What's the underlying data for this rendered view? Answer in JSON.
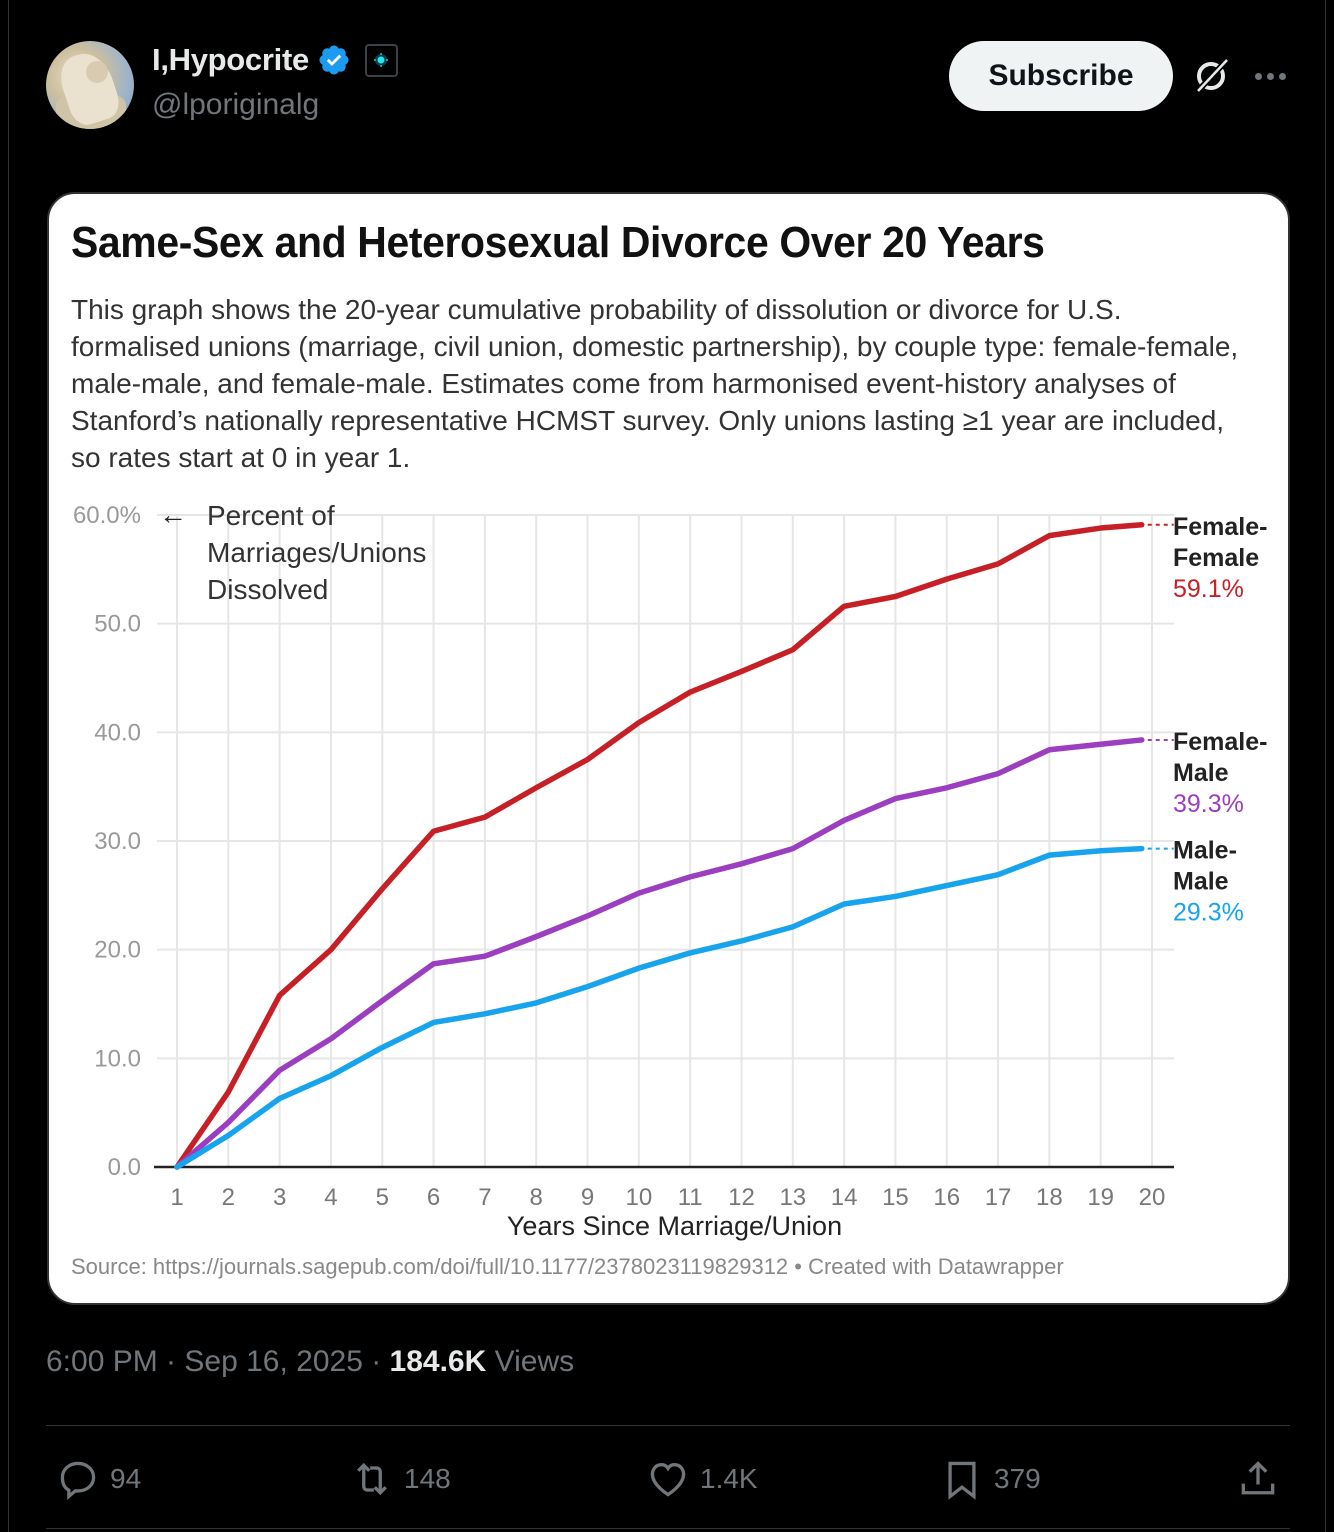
{
  "post": {
    "display_name": "I,Hypocrite",
    "handle": "@lporiginalg",
    "verified": true,
    "subscribe_label": "Subscribe",
    "timestamp": "6:00 PM · Sep 16, 2025 · ",
    "views_count": "184.6K",
    "views_label": " Views",
    "actions": {
      "reply_count": "94",
      "repost_count": "148",
      "like_count": "1.4K",
      "bookmark_count": "379"
    },
    "icons": [
      "verified-badge-icon",
      "affiliate-badge-icon",
      "grok-icon",
      "more-icon",
      "reply-icon",
      "repost-icon",
      "like-icon",
      "bookmark-icon",
      "share-icon"
    ],
    "colors": {
      "verified": "#1d9bf0",
      "muted": "#71767b",
      "text": "#e7e9ea",
      "background": "#000000"
    }
  },
  "chart_data": {
    "type": "line",
    "title": "Same-Sex and Heterosexual Divorce Over 20 Years",
    "subtitle": "This graph shows the 20-year cumulative probability of dissolution or divorce for U.S. formalised unions (marriage, civil union, domestic partnership), by couple type: female-female, male-male, and female-male. Estimates come from harmonised event-history analyses of Stanford’s nationally representative HCMST survey. Only unions lasting ≥1 year are included, so rates start at 0 in year 1.",
    "ylabel_annotation": [
      "Percent of",
      "Marriages/Unions",
      "Dissolved"
    ],
    "ylabel_arrow": "←",
    "xlabel": "Years Since Marriage/Union",
    "ylim": [
      0,
      60
    ],
    "xlim": [
      1,
      20
    ],
    "y_ticks": [
      "0.0",
      "10.0",
      "20.0",
      "30.0",
      "40.0",
      "50.0",
      "60.0%"
    ],
    "y_tick_values": [
      0,
      10,
      20,
      30,
      40,
      50,
      60
    ],
    "x_ticks": [
      "1",
      "2",
      "3",
      "4",
      "5",
      "6",
      "7",
      "8",
      "9",
      "10",
      "11",
      "12",
      "13",
      "14",
      "15",
      "16",
      "17",
      "18",
      "19",
      "20"
    ],
    "grid": true,
    "legend": "direct-labels-right",
    "x": [
      1,
      2,
      3,
      4,
      5,
      6,
      7,
      8,
      9,
      10,
      11,
      12,
      13,
      14,
      15,
      16,
      17,
      18,
      19,
      19.8
    ],
    "series": [
      {
        "name": "Female-Female",
        "label_lines": [
          "Female-",
          "Female"
        ],
        "end_label": "59.1%",
        "color": "#c62026",
        "values": [
          0,
          6.9,
          15.8,
          20.0,
          25.6,
          30.9,
          32.2,
          34.9,
          37.5,
          40.9,
          43.7,
          45.6,
          47.6,
          51.6,
          52.5,
          54.1,
          55.5,
          58.1,
          58.8,
          59.1
        ]
      },
      {
        "name": "Female-Male",
        "label_lines": [
          "Female-",
          "Male"
        ],
        "end_label": "39.3%",
        "color": "#9b3fc0",
        "values": [
          0,
          4.1,
          8.9,
          11.8,
          15.3,
          18.7,
          19.4,
          21.2,
          23.1,
          25.2,
          26.7,
          27.9,
          29.3,
          31.9,
          33.9,
          34.9,
          36.2,
          38.4,
          38.9,
          39.3
        ]
      },
      {
        "name": "Male-Male",
        "label_lines": [
          "Male-",
          "Male"
        ],
        "end_label": "29.3%",
        "color": "#18a4ec",
        "values": [
          0,
          2.9,
          6.3,
          8.4,
          11.0,
          13.3,
          14.1,
          15.1,
          16.6,
          18.3,
          19.7,
          20.8,
          22.1,
          24.2,
          24.9,
          25.9,
          26.9,
          28.7,
          29.1,
          29.3
        ]
      }
    ],
    "source": "Source: https://journals.sagepub.com/doi/full/10.1177/2378023119829312 • Created with Datawrapper"
  }
}
